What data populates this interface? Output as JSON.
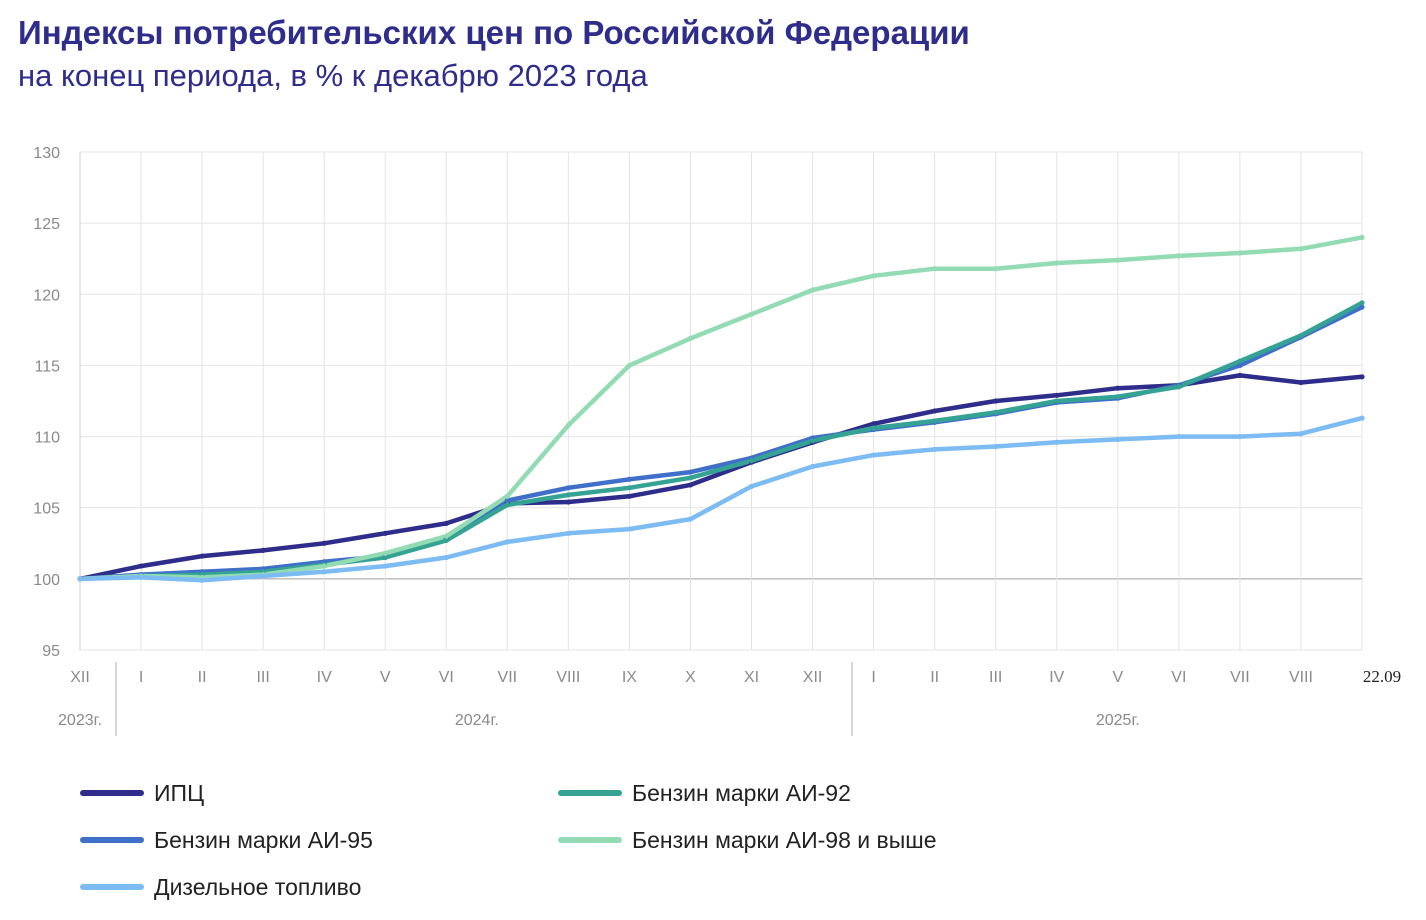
{
  "title": "Индексы потребительских цен по Российской Федерации",
  "subtitle": "на конец периода, в % к декабрю 2023 года",
  "chart_data": {
    "type": "line",
    "title": "Индексы потребительских цен по Российской Федерации",
    "subtitle": "на конец периода, в % к декабрю 2023 года",
    "xlabel": "",
    "ylabel": "",
    "ylim": [
      95,
      130
    ],
    "yticks": [
      95,
      100,
      105,
      110,
      115,
      120,
      125,
      130
    ],
    "grid": true,
    "legend_position": "bottom",
    "categories": [
      "XII",
      "I",
      "II",
      "III",
      "IV",
      "V",
      "VI",
      "VII",
      "VIII",
      "IX",
      "X",
      "XI",
      "XII",
      "I",
      "II",
      "III",
      "IV",
      "V",
      "VI",
      "VII",
      "VIII",
      "22.09"
    ],
    "year_labels": [
      {
        "label": "2023г.",
        "from": 0,
        "to": 0
      },
      {
        "label": "2024г.",
        "from": 1,
        "to": 12
      },
      {
        "label": "2025г.",
        "from": 13,
        "to": 21
      }
    ],
    "series": [
      {
        "name": "ИПЦ",
        "color": "#2e2d8c",
        "values": [
          100,
          100.9,
          101.6,
          102.0,
          102.5,
          103.2,
          103.9,
          105.3,
          105.4,
          105.8,
          106.6,
          108.2,
          109.6,
          110.9,
          111.8,
          112.5,
          112.9,
          113.4,
          113.6,
          114.3,
          113.8,
          114.2
        ]
      },
      {
        "name": "Бензин марки АИ-95",
        "color": "#3f6fc8",
        "values": [
          100,
          100.3,
          100.5,
          100.7,
          101.2,
          101.6,
          102.8,
          105.5,
          106.4,
          107.0,
          107.5,
          108.5,
          109.9,
          110.5,
          111.0,
          111.6,
          112.4,
          112.7,
          113.6,
          115.0,
          117.0,
          119.1
        ]
      },
      {
        "name": "Бензин марки АИ-92",
        "color": "#35a394",
        "values": [
          100,
          100.2,
          100.3,
          100.5,
          101.0,
          101.5,
          102.7,
          105.2,
          105.9,
          106.4,
          107.1,
          108.3,
          109.7,
          110.6,
          111.1,
          111.7,
          112.5,
          112.8,
          113.5,
          115.3,
          117.1,
          119.4
        ]
      },
      {
        "name": "Бензин марки АИ-98 и выше",
        "color": "#93dcb3",
        "values": [
          100,
          100.2,
          100.1,
          100.3,
          100.9,
          101.8,
          103.0,
          105.8,
          110.8,
          115.0,
          116.9,
          118.6,
          120.3,
          121.3,
          121.8,
          121.8,
          122.2,
          122.4,
          122.7,
          122.9,
          123.2,
          124.0
        ]
      },
      {
        "name": "Дизельное топливо",
        "color": "#7dbbf3",
        "values": [
          100,
          100.1,
          99.9,
          100.2,
          100.5,
          100.9,
          101.5,
          102.6,
          103.2,
          103.5,
          104.2,
          106.5,
          107.9,
          108.7,
          109.1,
          109.3,
          109.6,
          109.8,
          110.0,
          110.0,
          110.2,
          111.3
        ]
      }
    ]
  },
  "legend": [
    {
      "name": "ИПЦ",
      "color": "#2e2d8c"
    },
    {
      "name": "Бензин марки АИ-92",
      "color": "#35a394"
    },
    {
      "name": "Бензин марки АИ-95",
      "color": "#3f6fc8"
    },
    {
      "name": "Бензин марки АИ-98 и выше",
      "color": "#93dcb3"
    },
    {
      "name": "Дизельное топливо",
      "color": "#7dbbf3"
    }
  ]
}
